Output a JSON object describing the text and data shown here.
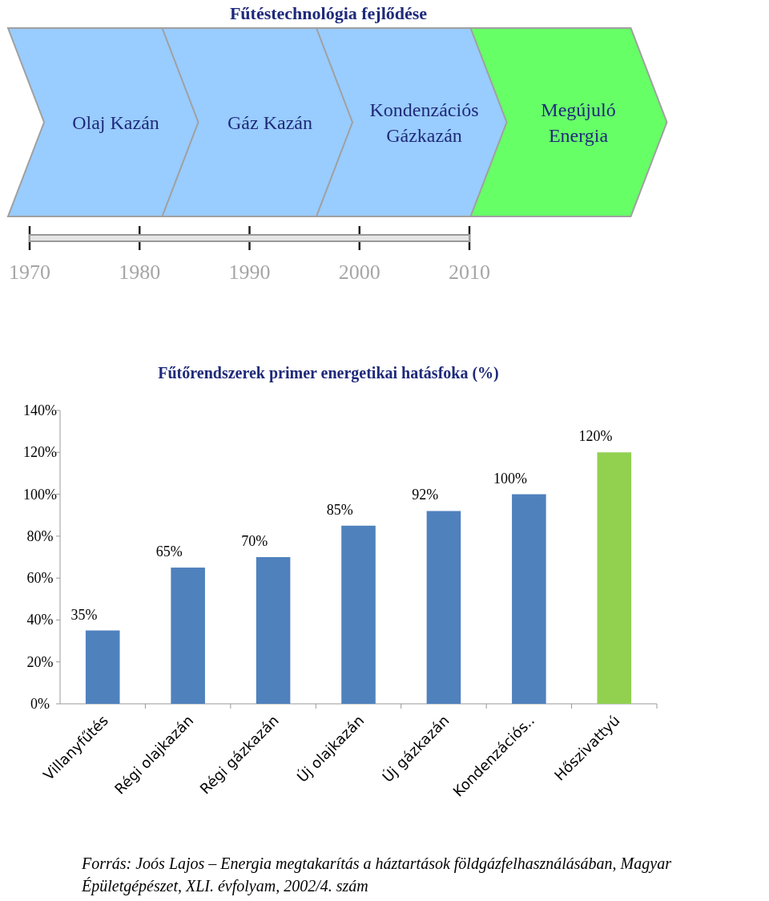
{
  "chart_data": [
    {
      "type": "bar",
      "title": "Fűtéstechnológia fejlődése",
      "orientation": "horizontal",
      "categories": [
        null
      ],
      "base": [
        1970
      ],
      "values": [
        40
      ],
      "colors": [
        "#e6e6e6"
      ],
      "xlim": [
        1970,
        2010
      ],
      "xticks": [
        1970,
        1980,
        1990,
        2000,
        2010
      ],
      "grid": "x",
      "annotations": [
        "Olaj Kazán",
        "Gáz Kazán",
        "Kondenzációs Gázkazán",
        "Megújuló Energia"
      ]
    },
    {
      "type": "bar",
      "title": "Fűtőrendszerek primer energetikai hatásfoka (%)",
      "categories": [
        "Villanyfűtés",
        "Régi olajkazán",
        "Régi gázkazán",
        "Új olajkazán",
        "Új gázkazán",
        "Kondenzációs..",
        "Hőszivattyú"
      ],
      "values": [
        35,
        65,
        70,
        85,
        92,
        100,
        120
      ],
      "colors": [
        "#4f81bd",
        "#4f81bd",
        "#4f81bd",
        "#4f81bd",
        "#4f81bd",
        "#4f81bd",
        "#92d050"
      ],
      "value_labels": [
        "35%",
        "65%",
        "70%",
        "85%",
        "92%",
        "100%",
        "120%"
      ],
      "ylim": [
        0,
        140
      ],
      "yticks": [
        {
          "value": 0,
          "label": "0%"
        },
        {
          "value": 20,
          "label": "20%"
        },
        {
          "value": 40,
          "label": "40%"
        },
        {
          "value": 60,
          "label": "60%"
        },
        {
          "value": 80,
          "label": "80%"
        },
        {
          "value": 100,
          "label": "100%"
        },
        {
          "value": 120,
          "label": "120%"
        },
        {
          "value": 140,
          "label": "140%"
        }
      ],
      "grid": false,
      "annotations": [
        "Forrás: Joós Lajos – Energia megtakarítás a háztartások földgázfelhasználásában, Magyar Épületgépészet, XLI. évfolyam, 2002/4. szám"
      ]
    }
  ]
}
